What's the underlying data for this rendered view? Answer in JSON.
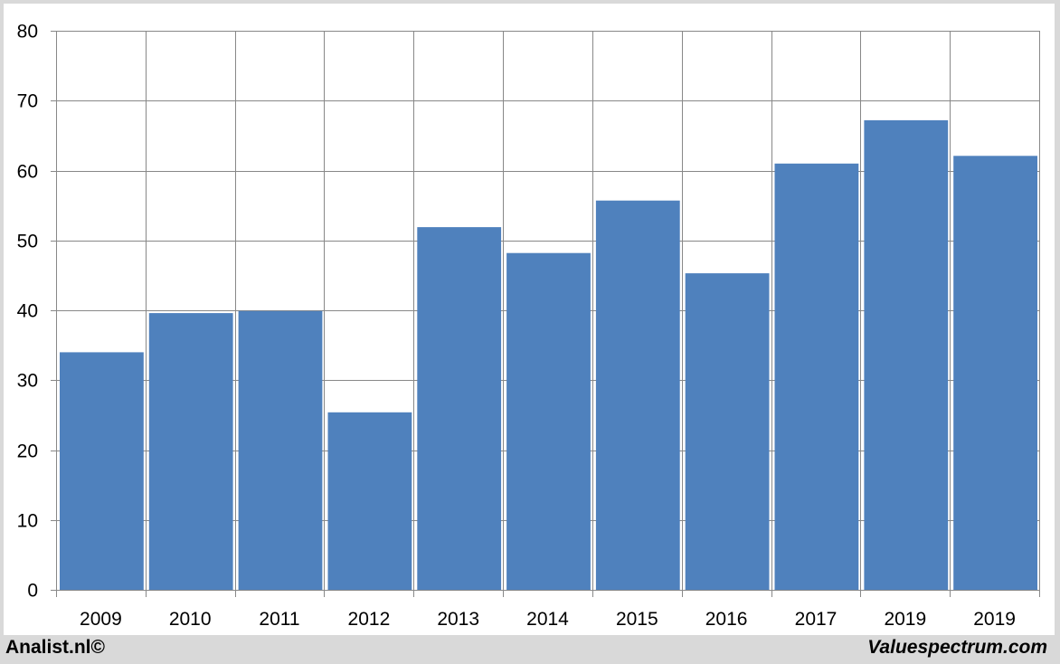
{
  "footer": {
    "source_left": "Analist.nl©",
    "source_right": "Valuespectrum.com"
  },
  "chart_data": {
    "type": "bar",
    "title": "",
    "xlabel": "",
    "ylabel": "",
    "categories": [
      "2009",
      "2010",
      "2011",
      "2012",
      "2013",
      "2014",
      "2015",
      "2016",
      "2017",
      "2019",
      "2019"
    ],
    "values": [
      34.0,
      39.6,
      39.9,
      25.4,
      51.9,
      48.2,
      55.7,
      45.3,
      61.0,
      67.2,
      62.1
    ],
    "ylim": [
      0,
      80
    ],
    "yticks": [
      0,
      10,
      20,
      30,
      40,
      50,
      60,
      70,
      80
    ],
    "grid": true,
    "legend": "none",
    "bar_color": "#4f81bd",
    "grid_color": "#888888"
  }
}
